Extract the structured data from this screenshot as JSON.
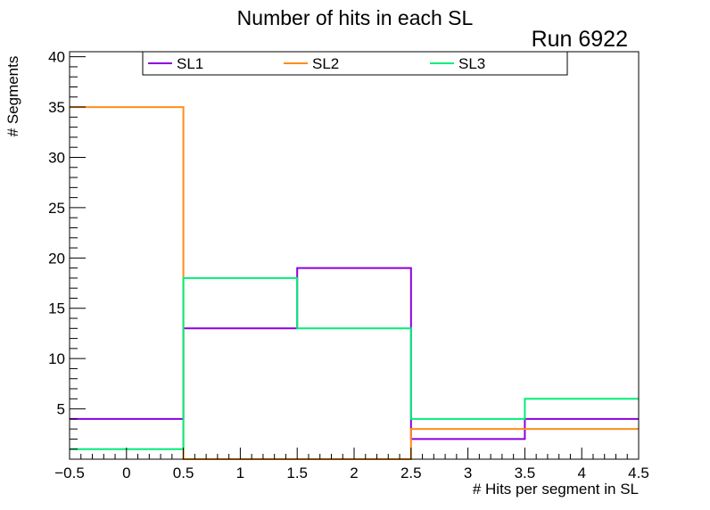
{
  "chart_data": {
    "type": "histogram",
    "title": "Number of hits in each SL",
    "annotation": "Run 6922",
    "xlabel": "# Hits per segment in SL",
    "ylabel": "# Segments",
    "xlim": [
      -0.5,
      4.5
    ],
    "ylim": [
      0,
      40.5
    ],
    "bin_edges": [
      -0.5,
      0.5,
      1.5,
      2.5,
      3.5,
      4.5
    ],
    "x_ticks": [
      -0.5,
      0,
      0.5,
      1,
      1.5,
      2,
      2.5,
      3,
      3.5,
      4,
      4.5
    ],
    "x_tick_labels": [
      "−0.5",
      "0",
      "0.5",
      "1",
      "1.5",
      "2",
      "2.5",
      "3",
      "3.5",
      "4",
      "4.5"
    ],
    "y_ticks": [
      5,
      10,
      15,
      20,
      25,
      30,
      35,
      40
    ],
    "y_tick_labels": [
      "5",
      "10",
      "15",
      "20",
      "25",
      "30",
      "35",
      "40"
    ],
    "legend_position": "top",
    "series": [
      {
        "name": "SL1",
        "color": "#8a00e0",
        "values": [
          4,
          13,
          19,
          2,
          4
        ]
      },
      {
        "name": "SL2",
        "color": "#ff8c1a",
        "values": [
          35,
          0,
          0,
          3,
          3
        ]
      },
      {
        "name": "SL3",
        "color": "#00ee77",
        "values": [
          1,
          18,
          13,
          4,
          6
        ]
      }
    ]
  }
}
